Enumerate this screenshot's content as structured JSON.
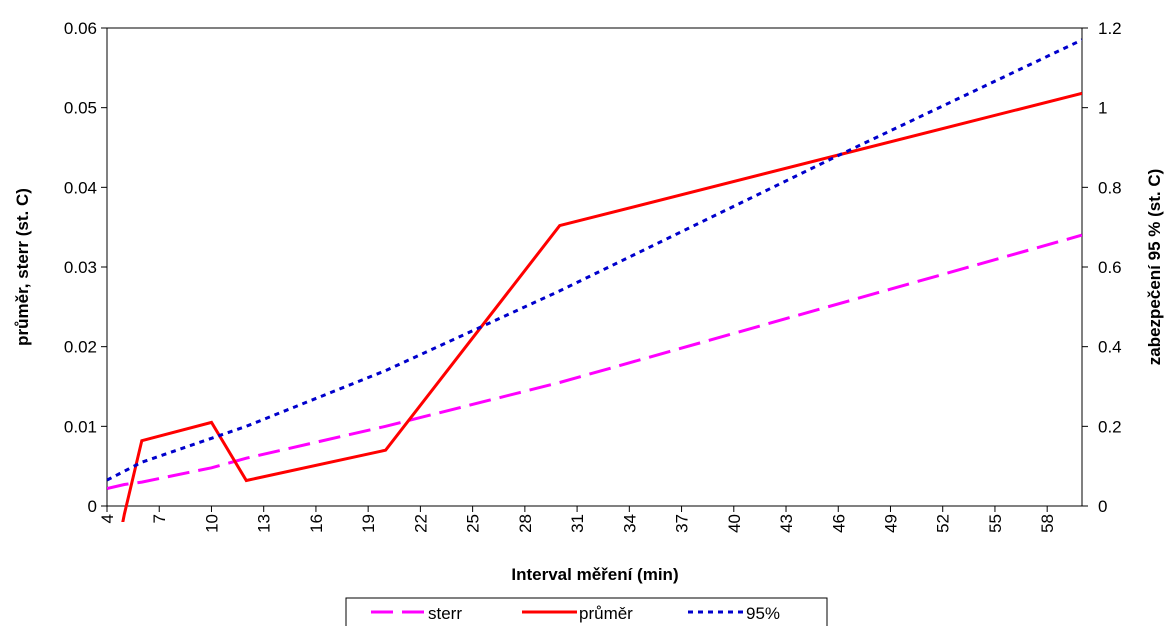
{
  "chart_data": {
    "type": "line",
    "xlabel": "Interval měření (min)",
    "ylabel": "průměr, sterr (st. C)",
    "y2label": "zabezpečení 95 % (st. C)",
    "x_ticks": [
      4,
      7,
      10,
      13,
      16,
      19,
      22,
      25,
      28,
      31,
      34,
      37,
      40,
      43,
      46,
      49,
      52,
      55,
      58
    ],
    "xlim": [
      4,
      60
    ],
    "ylim": [
      0,
      0.06
    ],
    "y_ticks": [
      "0",
      "0.01",
      "0.02",
      "0.03",
      "0.04",
      "0.05",
      "0.06"
    ],
    "y_tick_values": [
      0,
      0.01,
      0.02,
      0.03,
      0.04,
      0.05,
      0.06
    ],
    "y2lim": [
      0,
      1.2
    ],
    "y2_ticks": [
      "0",
      "0.2",
      "0.4",
      "0.6",
      "0.8",
      "1",
      "1.2"
    ],
    "y2_tick_values": [
      0,
      0.2,
      0.4,
      0.6,
      0.8,
      1.0,
      1.2
    ],
    "grid": false,
    "legend_position": "bottom",
    "series": [
      {
        "name": "sterr",
        "axis": "left",
        "color": "#ff00ff",
        "dash": "long-dash",
        "x": [
          4,
          5,
          6,
          10,
          12,
          20,
          30,
          60
        ],
        "y": [
          0.0022,
          0.0027,
          0.003,
          0.0048,
          0.006,
          0.01,
          0.0155,
          0.034
        ]
      },
      {
        "name": "průměr",
        "axis": "left",
        "color": "#ff0000",
        "dash": "solid",
        "x": [
          4,
          5,
          6,
          10,
          12,
          20,
          30,
          60
        ],
        "y": [
          -0.012,
          -0.001,
          0.0082,
          0.0105,
          0.0032,
          0.007,
          0.0352,
          0.0518
        ]
      },
      {
        "name": "95%",
        "axis": "right",
        "color": "#0000cc",
        "dash": "dotted",
        "x": [
          4,
          6,
          10,
          12,
          20,
          30,
          46,
          60
        ],
        "y": [
          0.065,
          0.11,
          0.17,
          0.2,
          0.34,
          0.54,
          0.88,
          1.17
        ]
      }
    ]
  }
}
